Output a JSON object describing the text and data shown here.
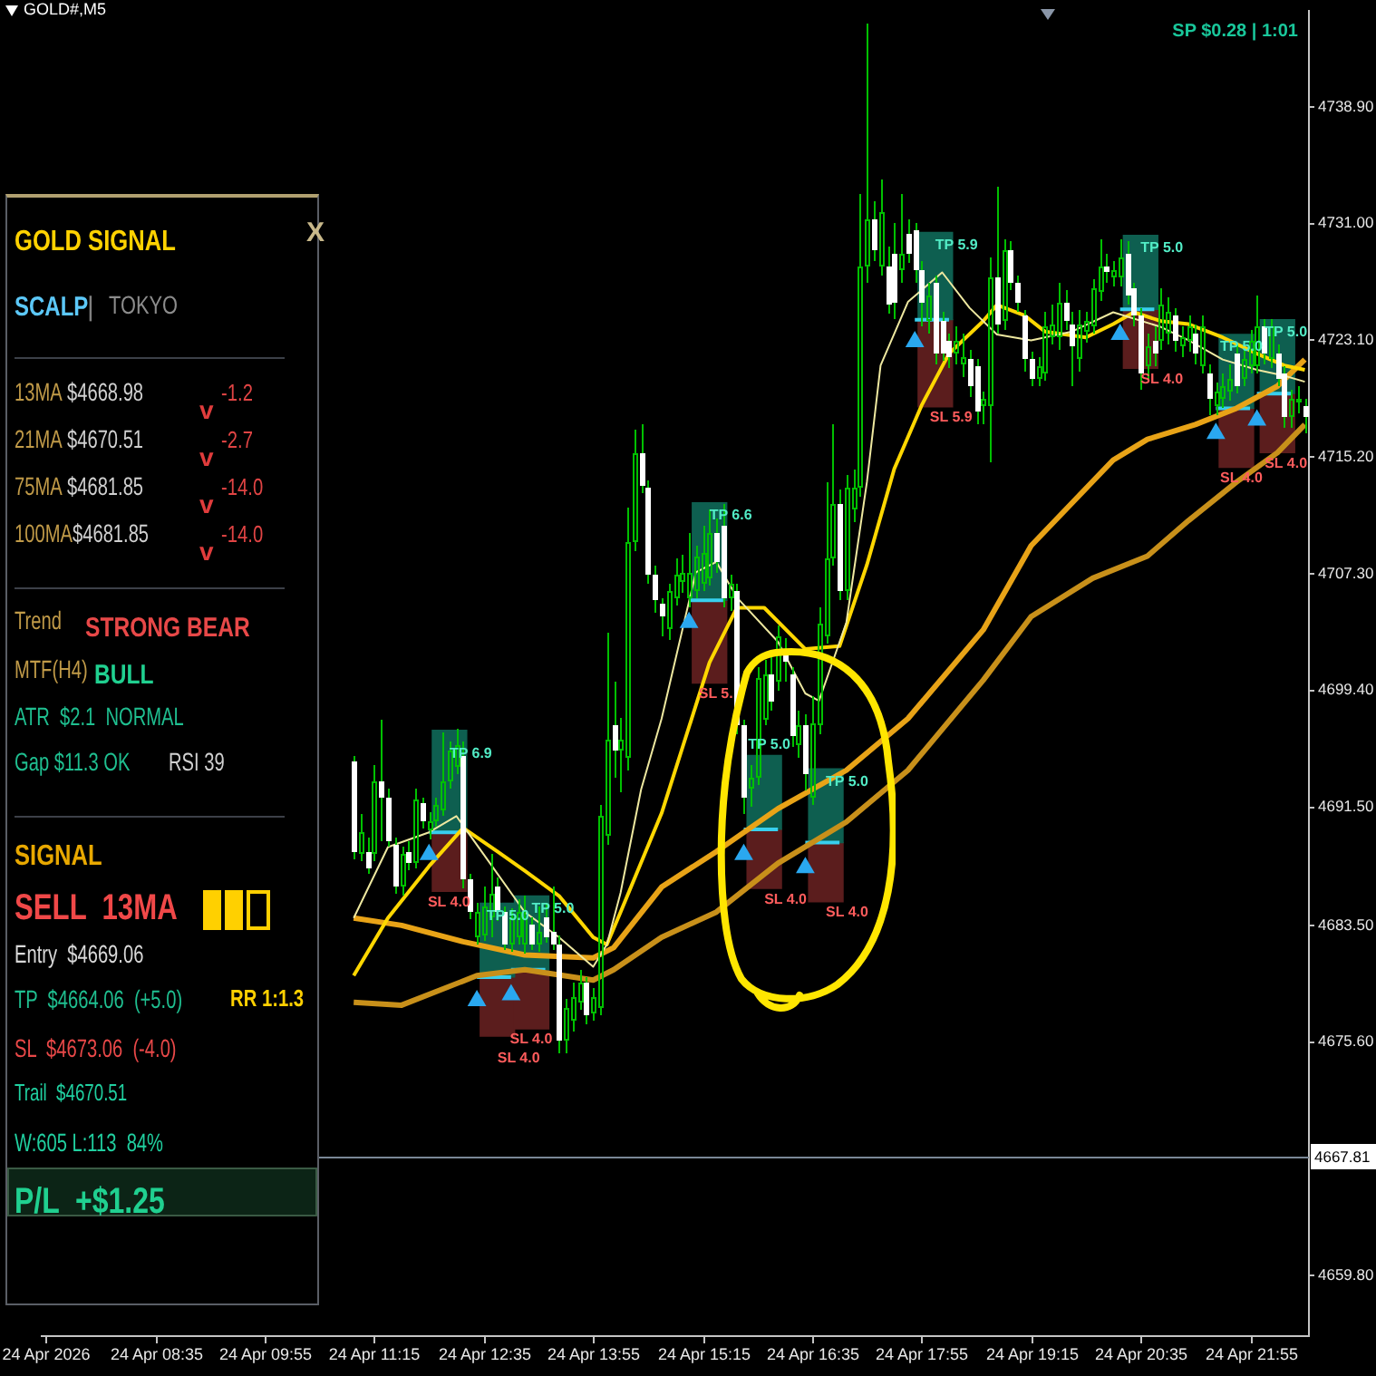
{
  "chart_data": [
    {
      "type": "candlestick",
      "title": "GOLD#,M5",
      "annotations": [
        "SP $0.28 | 1:01"
      ],
      "x": [
        "2026-04-24T11:00",
        "2026-04-24T11:05",
        "2026-04-24T11:10",
        "2026-04-24T11:15",
        "2026-04-24T11:20",
        "2026-04-24T11:25",
        "2026-04-24T11:30",
        "2026-04-24T11:35",
        "2026-04-24T11:40",
        "2026-04-24T11:45",
        "2026-04-24T11:50",
        "2026-04-24T11:55",
        "2026-04-24T12:00",
        "2026-04-24T12:05",
        "2026-04-24T12:10",
        "2026-04-24T12:15",
        "2026-04-24T12:20",
        "2026-04-24T12:25",
        "2026-04-24T12:30",
        "2026-04-24T12:35",
        "2026-04-24T12:40",
        "2026-04-24T12:45",
        "2026-04-24T12:50",
        "2026-04-24T12:55",
        "2026-04-24T13:00",
        "2026-04-24T13:05",
        "2026-04-24T13:10",
        "2026-04-24T13:15",
        "2026-04-24T13:20",
        "2026-04-24T13:25",
        "2026-04-24T13:30",
        "2026-04-24T13:35",
        "2026-04-24T13:40",
        "2026-04-24T13:45",
        "2026-04-24T13:50",
        "2026-04-24T13:55",
        "2026-04-24T14:00",
        "2026-04-24T14:05",
        "2026-04-24T14:10",
        "2026-04-24T14:15",
        "2026-04-24T14:20",
        "2026-04-24T14:25",
        "2026-04-24T14:30",
        "2026-04-24T14:35",
        "2026-04-24T14:40",
        "2026-04-24T14:45",
        "2026-04-24T14:50",
        "2026-04-24T14:55",
        "2026-04-24T15:00",
        "2026-04-24T15:05",
        "2026-04-24T15:10",
        "2026-04-24T15:15",
        "2026-04-24T15:20",
        "2026-04-24T15:25",
        "2026-04-24T15:30",
        "2026-04-24T15:35",
        "2026-04-24T15:40",
        "2026-04-24T15:45",
        "2026-04-24T15:50",
        "2026-04-24T15:55",
        "2026-04-24T16:00",
        "2026-04-24T16:05",
        "2026-04-24T16:10",
        "2026-04-24T16:15",
        "2026-04-24T16:20",
        "2026-04-24T16:25",
        "2026-04-24T16:30",
        "2026-04-24T16:35",
        "2026-04-24T16:40",
        "2026-04-24T16:45",
        "2026-04-24T16:50",
        "2026-04-24T16:55",
        "2026-04-24T17:00",
        "2026-04-24T17:05",
        "2026-04-24T17:10",
        "2026-04-24T17:15",
        "2026-04-24T17:20",
        "2026-04-24T17:25",
        "2026-04-24T17:30",
        "2026-04-24T17:35",
        "2026-04-24T17:40",
        "2026-04-24T17:45",
        "2026-04-24T17:50",
        "2026-04-24T17:55",
        "2026-04-24T18:00",
        "2026-04-24T18:05",
        "2026-04-24T18:10",
        "2026-04-24T18:15",
        "2026-04-24T18:20",
        "2026-04-24T18:25",
        "2026-04-24T18:30",
        "2026-04-24T18:35",
        "2026-04-24T18:40",
        "2026-04-24T18:45",
        "2026-04-24T18:50",
        "2026-04-24T18:55",
        "2026-04-24T19:00",
        "2026-04-24T19:05",
        "2026-04-24T19:10",
        "2026-04-24T19:15",
        "2026-04-24T19:20",
        "2026-04-24T19:25",
        "2026-04-24T19:30",
        "2026-04-24T19:35",
        "2026-04-24T19:40",
        "2026-04-24T19:45",
        "2026-04-24T19:50",
        "2026-04-24T19:55",
        "2026-04-24T20:00",
        "2026-04-24T20:05",
        "2026-04-24T20:10",
        "2026-04-24T20:15",
        "2026-04-24T20:20",
        "2026-04-24T20:25",
        "2026-04-24T20:30",
        "2026-04-24T20:35",
        "2026-04-24T20:40",
        "2026-04-24T20:45",
        "2026-04-24T20:50",
        "2026-04-24T20:55",
        "2026-04-24T21:00",
        "2026-04-24T21:05",
        "2026-04-24T21:10",
        "2026-04-24T21:15",
        "2026-04-24T21:20",
        "2026-04-24T21:25",
        "2026-04-24T21:30",
        "2026-04-24T21:35",
        "2026-04-24T21:40",
        "2026-04-24T21:45",
        "2026-04-24T21:50",
        "2026-04-24T21:55",
        "2026-04-24T22:00",
        "2026-04-24T22:05",
        "2026-04-24T22:10",
        "2026-04-24T22:15",
        "2026-04-24T22:20",
        "2026-04-24T22:25",
        "2026-04-24T22:30",
        "2026-04-24T22:35"
      ],
      "series": [
        {
          "type": "candlestick",
          "color": "#00c000",
          "colors": [
            "#ffffff",
            "#00c000",
            "#ffffff",
            "#00c000",
            "#ffffff",
            "#ffffff",
            "#ffffff",
            "#00c000",
            "#ffffff",
            "#00c000",
            "#ffffff",
            "#00c000",
            "#00c000",
            "#00c000",
            "#00c000",
            "#00c000",
            "#ffffff",
            "#ffffff",
            "#00c000",
            "#00c000",
            "#00c000",
            "#ffffff",
            "#ffffff",
            "#00c000",
            "#00c000",
            "#00c000",
            "#ffffff",
            "#00c000",
            "#ffffff",
            "#ffffff",
            "#ffffff",
            "#00c000",
            "#00c000",
            "#00c000",
            "#ffffff",
            "#00c000",
            "#00c000",
            "#00c000",
            "#ffffff",
            "#00c000",
            "#00c000",
            "#00c000",
            "#ffffff",
            "#ffffff",
            "#ffffff",
            "#ffffff",
            "#00c000",
            "#00c000",
            "#00c000",
            "#00c000",
            "#00c000",
            "#00c000",
            "#00c000",
            "#ffffff",
            "#ffffff",
            "#00c000",
            "#ffffff",
            "#ffffff",
            "#00c000",
            "#00c000",
            "#00c000",
            "#ffffff",
            "#00c000",
            "#ffffff",
            "#ffffff",
            "#00c000",
            "#ffffff",
            "#00c000",
            "#00c000",
            "#00c000",
            "#00c000",
            "#ffffff",
            "#00c000",
            "#00c000",
            "#00c000",
            "#00c000",
            "#ffffff",
            "#00c000",
            "#ffffff",
            "#ffffff",
            "#00c000",
            "#ffffff",
            "#ffffff",
            "#ffffff",
            "#00c000",
            "#ffffff",
            "#ffffff",
            "#ffffff",
            "#00c000",
            "#00c000",
            "#ffffff",
            "#ffffff",
            "#00c000",
            "#00c000",
            "#ffffff",
            "#00c000",
            "#ffffff",
            "#ffffff",
            "#ffffff",
            "#ffffff",
            "#00c000",
            "#00c000",
            "#00c000",
            "#00c000",
            "#ffffff",
            "#ffffff",
            "#00c000",
            "#00c000",
            "#00c000",
            "#00c000",
            "#ffffff",
            "#00c000",
            "#00c000",
            "#ffffff",
            "#ffffff",
            "#ffffff",
            "#00c000",
            "#ffffff",
            "#00c000",
            "#00c000",
            "#ffffff",
            "#00c000",
            "#00c000",
            "#ffffff",
            "#00c000",
            "#ffffff",
            "#00c000",
            "#00c000",
            "#00c000",
            "#ffffff",
            "#00c000",
            "#00c000",
            "#00c000",
            "#ffffff",
            "#00c000",
            "#ffffff",
            "#ffffff",
            "#00c000",
            "#00c000",
            "#ffffff"
          ],
          "ohlc": [
            [
              4694.6,
              4695.0,
              4688.0,
              4688.5
            ],
            [
              4688.3,
              4691.0,
              4687.8,
              4689.8
            ],
            [
              4688.5,
              4689.5,
              4687.0,
              4687.4
            ],
            [
              4688.3,
              4694.4,
              4687.8,
              4693.3
            ],
            [
              4693.3,
              4697.4,
              4689.2,
              4692.2
            ],
            [
              4692.2,
              4692.8,
              4688.8,
              4689.2
            ],
            [
              4689.0,
              4689.5,
              4685.6,
              4686.1
            ],
            [
              4686.1,
              4688.8,
              4685.5,
              4688.3
            ],
            [
              4688.5,
              4689.2,
              4687.2,
              4687.7
            ],
            [
              4687.7,
              4692.8,
              4687.3,
              4692.0
            ],
            [
              4691.8,
              4692.2,
              4690.0,
              4690.5
            ],
            [
              4689.9,
              4691.2,
              4689.3,
              4690.6
            ],
            [
              4690.5,
              4692.2,
              4690.2,
              4691.6
            ],
            [
              4691.3,
              4696.6,
              4690.9,
              4693.3
            ],
            [
              4693.3,
              4696.0,
              4692.8,
              4695.3
            ],
            [
              4694.2,
              4696.8,
              4693.8,
              4695.7
            ],
            [
              4695.0,
              4695.9,
              4686.0,
              4686.6
            ],
            [
              4686.6,
              4687.0,
              4683.9,
              4684.4
            ],
            [
              4682.7,
              4685.0,
              4682.2,
              4684.4
            ],
            [
              4682.8,
              4686.1,
              4682.4,
              4684.8
            ],
            [
              4684.0,
              4688.3,
              4682.7,
              4685.7
            ],
            [
              4686.1,
              4686.8,
              4683.8,
              4684.4
            ],
            [
              4684.4,
              4684.8,
              4681.8,
              4682.2
            ],
            [
              4682.2,
              4684.6,
              4681.7,
              4684.0
            ],
            [
              4682.7,
              4685.3,
              4682.2,
              4684.4
            ],
            [
              4682.2,
              4685.5,
              4681.6,
              4684.0
            ],
            [
              4683.5,
              4684.0,
              4681.8,
              4682.2
            ],
            [
              4682.2,
              4684.8,
              4681.7,
              4683.1
            ],
            [
              4684.0,
              4685.0,
              4682.3,
              4682.7
            ],
            [
              4683.1,
              4686.1,
              4681.8,
              4682.2
            ],
            [
              4682.2,
              4682.8,
              4674.9,
              4675.7
            ],
            [
              4675.7,
              4678.5,
              4674.8,
              4677.9
            ],
            [
              4677.0,
              4679.6,
              4676.3,
              4678.7
            ],
            [
              4678.3,
              4680.5,
              4677.8,
              4679.6
            ],
            [
              4679.6,
              4680.0,
              4676.8,
              4677.4
            ],
            [
              4677.6,
              4679.2,
              4677.0,
              4678.7
            ],
            [
              4677.9,
              4691.6,
              4677.4,
              4690.9
            ],
            [
              4689.6,
              4703.3,
              4689.0,
              4696.1
            ],
            [
              4697.0,
              4700.0,
              4693.5,
              4695.3
            ],
            [
              4695.3,
              4697.5,
              4692.5,
              4696.1
            ],
            [
              4694.8,
              4711.8,
              4694.0,
              4709.4
            ],
            [
              4709.4,
              4717.0,
              4708.8,
              4715.5
            ],
            [
              4715.5,
              4717.4,
              4712.8,
              4713.3
            ],
            [
              4713.1,
              4713.6,
              4706.6,
              4707.2
            ],
            [
              4707.2,
              4707.8,
              4704.6,
              4705.5
            ],
            [
              4705.3,
              4705.7,
              4703.1,
              4704.4
            ],
            [
              4703.5,
              4706.6,
              4702.8,
              4706.1
            ],
            [
              4705.7,
              4708.3,
              4705.2,
              4707.2
            ],
            [
              4706.8,
              4708.6,
              4706.0,
              4707.4
            ],
            [
              4705.7,
              4710.0,
              4705.0,
              4707.4
            ],
            [
              4706.1,
              4709.2,
              4705.6,
              4708.5
            ],
            [
              4706.6,
              4710.5,
              4706.1,
              4708.7
            ],
            [
              4707.0,
              4711.6,
              4706.5,
              4710.0
            ],
            [
              4710.0,
              4711.0,
              4707.4,
              4708.1
            ],
            [
              4710.5,
              4712.0,
              4705.0,
              4705.7
            ],
            [
              4705.7,
              4707.2,
              4704.8,
              4706.6
            ],
            [
              4706.1,
              4706.6,
              4696.5,
              4697.0
            ],
            [
              4697.0,
              4697.4,
              4691.0,
              4692.2
            ],
            [
              4692.7,
              4694.4,
              4691.5,
              4693.5
            ],
            [
              4693.5,
              4701.0,
              4693.0,
              4700.3
            ],
            [
              4697.4,
              4701.5,
              4697.0,
              4700.5
            ],
            [
              4700.5,
              4701.8,
              4698.0,
              4698.7
            ],
            [
              4700.0,
              4703.8,
              4699.4,
              4703.1
            ],
            [
              4702.2,
              4703.0,
              4700.0,
              4701.3
            ],
            [
              4700.5,
              4701.0,
              4695.6,
              4696.3
            ],
            [
              4695.7,
              4698.0,
              4694.8,
              4697.0
            ],
            [
              4697.0,
              4697.8,
              4692.6,
              4693.7
            ],
            [
              4692.2,
              4699.0,
              4691.6,
              4697.2
            ],
            [
              4697.0,
              4705.0,
              4696.5,
              4703.9
            ],
            [
              4703.1,
              4713.5,
              4702.6,
              4708.3
            ],
            [
              4708.3,
              4717.4,
              4707.8,
              4712.0
            ],
            [
              4712.0,
              4713.0,
              4705.5,
              4706.1
            ],
            [
              4706.1,
              4714.0,
              4705.5,
              4713.1
            ],
            [
              4711.6,
              4714.4,
              4710.8,
              4713.1
            ],
            [
              4713.1,
              4733.0,
              4712.5,
              4728.1
            ],
            [
              4728.1,
              4744.5,
              4727.0,
              4731.3
            ],
            [
              4731.3,
              4732.5,
              4728.5,
              4729.2
            ],
            [
              4728.1,
              4734.0,
              4727.5,
              4731.8
            ],
            [
              4728.1,
              4729.5,
              4724.9,
              4725.5
            ],
            [
              4729.0,
              4731.0,
              4724.5,
              4725.7
            ],
            [
              4727.9,
              4733.0,
              4727.0,
              4729.0
            ],
            [
              4730.3,
              4731.3,
              4728.4,
              4729.0
            ],
            [
              4730.5,
              4731.0,
              4727.0,
              4727.9
            ],
            [
              4727.9,
              4728.5,
              4724.0,
              4725.7
            ],
            [
              4724.4,
              4727.0,
              4723.5,
              4726.1
            ],
            [
              4727.0,
              4727.5,
              4721.5,
              4722.2
            ],
            [
              4724.4,
              4725.0,
              4721.7,
              4722.2
            ],
            [
              4723.1,
              4723.6,
              4721.2,
              4722.0
            ],
            [
              4722.2,
              4724.0,
              4721.5,
              4723.1
            ],
            [
              4721.5,
              4723.5,
              4720.6,
              4722.0
            ],
            [
              4721.8,
              4722.5,
              4719.3,
              4720.0
            ],
            [
              4721.4,
              4721.8,
              4717.4,
              4718.3
            ],
            [
              4718.7,
              4719.6,
              4717.4,
              4719.1
            ],
            [
              4718.7,
              4728.7,
              4714.8,
              4727.4
            ],
            [
              4727.4,
              4733.5,
              4723.5,
              4724.2
            ],
            [
              4724.4,
              4730.0,
              4723.8,
              4729.2
            ],
            [
              4729.2,
              4729.8,
              4726.5,
              4727.0
            ],
            [
              4727.0,
              4727.5,
              4725.0,
              4725.7
            ],
            [
              4724.8,
              4725.2,
              4721.0,
              4721.8
            ],
            [
              4721.8,
              4722.3,
              4720.0,
              4720.5
            ],
            [
              4720.5,
              4722.0,
              4720.0,
              4721.4
            ],
            [
              4720.9,
              4725.0,
              4720.4,
              4724.0
            ],
            [
              4723.3,
              4725.5,
              4722.8,
              4724.2
            ],
            [
              4723.3,
              4727.0,
              4722.5,
              4725.7
            ],
            [
              4725.7,
              4726.5,
              4723.8,
              4724.4
            ],
            [
              4724.2,
              4725.0,
              4720.0,
              4722.7
            ],
            [
              4721.8,
              4725.2,
              4721.0,
              4724.2
            ],
            [
              4723.7,
              4725.0,
              4723.0,
              4724.4
            ],
            [
              4724.0,
              4727.2,
              4723.5,
              4726.6
            ],
            [
              4726.4,
              4730.0,
              4725.8,
              4728.1
            ],
            [
              4728.1,
              4729.0,
              4727.0,
              4727.7
            ],
            [
              4727.4,
              4728.5,
              4726.8,
              4727.9
            ],
            [
              4727.4,
              4730.0,
              4726.8,
              4728.7
            ],
            [
              4729.0,
              4729.8,
              4725.5,
              4726.1
            ],
            [
              4726.6,
              4727.0,
              4724.0,
              4724.8
            ],
            [
              4724.8,
              4725.3,
              4719.8,
              4720.9
            ],
            [
              4721.4,
              4723.5,
              4720.5,
              4722.7
            ],
            [
              4723.1,
              4724.0,
              4721.4,
              4722.2
            ],
            [
              4723.1,
              4726.6,
              4722.5,
              4725.5
            ],
            [
              4723.5,
              4726.0,
              4722.8,
              4725.0
            ],
            [
              4724.8,
              4725.3,
              4722.3,
              4723.1
            ],
            [
              4722.7,
              4724.0,
              4722.0,
              4723.3
            ],
            [
              4723.1,
              4724.8,
              4722.3,
              4724.0
            ],
            [
              4723.5,
              4724.2,
              4721.5,
              4722.2
            ],
            [
              4721.4,
              4724.8,
              4720.8,
              4724.0
            ],
            [
              4720.9,
              4721.5,
              4718.0,
              4719.2
            ],
            [
              4718.7,
              4720.2,
              4718.0,
              4719.6
            ],
            [
              4719.2,
              4720.8,
              4718.5,
              4720.0
            ],
            [
              4719.6,
              4721.5,
              4719.0,
              4720.5
            ],
            [
              4722.2,
              4722.8,
              4719.5,
              4720.0
            ],
            [
              4720.5,
              4722.5,
              4720.0,
              4721.8
            ],
            [
              4721.4,
              4723.8,
              4720.8,
              4723.1
            ],
            [
              4721.4,
              4726.1,
              4720.9,
              4724.0
            ],
            [
              4724.0,
              4724.6,
              4721.5,
              4722.2
            ],
            [
              4721.8,
              4724.5,
              4721.2,
              4724.0
            ],
            [
              4722.2,
              4722.8,
              4720.0,
              4720.5
            ],
            [
              4720.9,
              4721.4,
              4717.2,
              4717.9
            ],
            [
              4717.9,
              4719.8,
              4717.2,
              4719.2
            ],
            [
              4718.9,
              4720.0,
              4718.2,
              4719.2
            ],
            [
              4718.7,
              4719.2,
              4716.8,
              4717.9
            ]
          ]
        },
        {
          "type": "line",
          "color": "#eee8a0",
          "x": [
            "2026-04-24T11:00",
            "2026-04-24T11:25",
            "2026-04-24T11:55",
            "2026-04-24T12:15",
            "2026-04-24T12:35",
            "2026-04-24T13:05",
            "2026-04-24T13:30",
            "2026-04-24T13:55",
            "2026-04-24T14:05",
            "2026-04-24T14:15",
            "2026-04-24T14:30",
            "2026-04-24T14:45",
            "2026-04-24T15:10",
            "2026-04-24T15:25",
            "2026-04-24T15:40",
            "2026-04-24T16:10",
            "2026-04-24T16:30",
            "2026-04-24T16:40",
            "2026-04-24T17:00",
            "2026-04-24T17:15",
            "2026-04-24T17:25",
            "2026-04-24T17:45",
            "2026-04-24T18:10",
            "2026-04-24T18:30",
            "2026-04-24T18:50",
            "2026-04-24T19:15",
            "2026-04-24T19:45",
            "2026-04-24T20:15",
            "2026-04-24T20:50",
            "2026-04-24T21:10",
            "2026-04-24T21:35",
            "2026-04-24T22:00",
            "2026-04-24T22:20",
            "2026-04-24T22:35"
          ],
          "values": [
            4684.0,
            4688.8,
            4689.8,
            4690.9,
            4688.3,
            4684.4,
            4682.7,
            4680.7,
            4682.2,
            4685.7,
            4692.7,
            4697.5,
            4707.4,
            4708.1,
            4705.7,
            4702.7,
            4699.2,
            4698.7,
            4704.0,
            4713.5,
            4721.4,
            4725.7,
            4727.7,
            4725.3,
            4723.5,
            4723.1,
            4723.7,
            4725.0,
            4724.0,
            4723.1,
            4721.8,
            4721.1,
            4720.7,
            4720.3
          ]
        },
        {
          "type": "line",
          "color": "#ffd700",
          "x": [
            "2026-04-24T11:00",
            "2026-04-24T11:25",
            "2026-04-24T11:55",
            "2026-04-24T12:20",
            "2026-04-24T12:45",
            "2026-04-24T13:05",
            "2026-04-24T13:30",
            "2026-04-24T13:55",
            "2026-04-24T14:05",
            "2026-04-24T14:15",
            "2026-04-24T14:45",
            "2026-04-24T15:20",
            "2026-04-24T15:40",
            "2026-04-24T16:00",
            "2026-04-24T16:30",
            "2026-04-24T16:55",
            "2026-04-24T17:15",
            "2026-04-24T17:35",
            "2026-04-24T17:55",
            "2026-04-24T18:15",
            "2026-04-24T18:40",
            "2026-04-24T18:50",
            "2026-04-24T19:10",
            "2026-04-24T19:25",
            "2026-04-24T19:55",
            "2026-04-24T20:15",
            "2026-04-24T20:30",
            "2026-04-24T20:50",
            "2026-04-24T21:10",
            "2026-04-24T21:35",
            "2026-04-24T22:00",
            "2026-04-24T22:20",
            "2026-04-24T22:35"
          ],
          "values": [
            4680.1,
            4684.0,
            4687.5,
            4690.1,
            4688.5,
            4687.2,
            4685.5,
            4682.7,
            4682.2,
            4684.4,
            4691.1,
            4701.3,
            4705.0,
            4705.0,
            4702.2,
            4702.4,
            4707.9,
            4714.4,
            4718.7,
            4722.2,
            4724.4,
            4725.5,
            4724.8,
            4723.7,
            4723.3,
            4724.2,
            4725.0,
            4724.4,
            4724.2,
            4723.3,
            4722.2,
            4721.4,
            4721.1
          ]
        },
        {
          "type": "line",
          "color": "#e8a317",
          "x": [
            "2026-04-24T11:00",
            "2026-04-24T11:35",
            "2026-04-24T12:20",
            "2026-04-24T13:05",
            "2026-04-24T13:55",
            "2026-04-24T14:10",
            "2026-04-24T14:45",
            "2026-04-24T15:25",
            "2026-04-24T16:10",
            "2026-04-24T17:00",
            "2026-04-24T17:45",
            "2026-04-24T18:40",
            "2026-04-24T19:15",
            "2026-04-24T20:15",
            "2026-04-24T20:40",
            "2026-04-24T21:15",
            "2026-04-24T21:45",
            "2026-04-24T22:15",
            "2026-04-24T22:35"
          ],
          "values": [
            4684.0,
            4683.5,
            4682.4,
            4681.5,
            4681.3,
            4682.0,
            4686.1,
            4688.5,
            4691.4,
            4694.0,
            4697.5,
            4703.5,
            4709.2,
            4715.0,
            4716.4,
            4717.4,
            4718.5,
            4720.0,
            4721.8
          ]
        },
        {
          "type": "line",
          "color": "#c8901a",
          "x": [
            "2026-04-24T11:00",
            "2026-04-24T11:35",
            "2026-04-24T12:30",
            "2026-04-24T13:05",
            "2026-04-24T13:55",
            "2026-04-24T14:10",
            "2026-04-24T14:45",
            "2026-04-24T15:25",
            "2026-04-24T16:10",
            "2026-04-24T17:00",
            "2026-04-24T17:45",
            "2026-04-24T18:40",
            "2026-04-24T19:15",
            "2026-04-24T20:00",
            "2026-04-24T20:40",
            "2026-04-24T21:10",
            "2026-04-24T21:45",
            "2026-04-24T22:15",
            "2026-04-24T22:35"
          ],
          "values": [
            4678.3,
            4678.1,
            4680.1,
            4680.5,
            4679.8,
            4680.5,
            4682.7,
            4684.4,
            4687.7,
            4690.5,
            4694.0,
            4700.1,
            4704.4,
            4707.0,
            4708.5,
            4710.9,
            4713.5,
            4715.5,
            4717.4
          ]
        },
        {
          "type": "bar",
          "color": "#0e5f50",
          "x": [
            "2026-04-24T12:10",
            "2026-04-24T12:45",
            "2026-04-24T13:10",
            "2026-04-24T15:20",
            "2026-04-24T16:00",
            "2026-04-24T16:45",
            "2026-04-24T18:05",
            "2026-04-24T20:35",
            "2026-04-24T21:45",
            "2026-04-24T22:15"
          ],
          "base": [
            4689.8,
            4680.0,
            4680.5,
            4705.5,
            4690.0,
            4689.1,
            4724.5,
            4725.2,
            4718.5,
            4719.5
          ],
          "values": [
            6.9,
            5.0,
            5.0,
            6.6,
            5.0,
            5.0,
            5.9,
            5.0,
            5.0,
            5.0
          ],
          "value_labels": [
            "TP 6.9",
            "TP 5.0",
            "TP 5.0",
            "TP 6.6",
            "TP 5.0",
            "TP 5.0",
            "TP 5.9",
            "TP 5.0",
            "TP 5.0",
            "TP 5.0"
          ]
        },
        {
          "type": "bar",
          "color": "#5b1d1d",
          "x": [
            "2026-04-24T12:10",
            "2026-04-24T12:45",
            "2026-04-24T13:10",
            "2026-04-24T15:20",
            "2026-04-24T16:00",
            "2026-04-24T16:45",
            "2026-04-24T18:05",
            "2026-04-24T20:35",
            "2026-04-24T21:45",
            "2026-04-24T22:15"
          ],
          "base": [
            4689.8,
            4680.0,
            4680.5,
            4705.5,
            4690.0,
            4689.1,
            4724.5,
            4725.2,
            4718.5,
            4719.5
          ],
          "values": [
            -4.0,
            -4.0,
            -4.0,
            -5.6,
            -4.0,
            -4.0,
            -5.9,
            -4.0,
            -4.0,
            -4.0
          ],
          "value_labels": [
            "SL 4.0",
            "SL 4.0",
            "SL 4.0",
            "SL 5.",
            "SL 4.0",
            "SL 4.0",
            "SL 5.9",
            "SL 4.0",
            "SL 4.0",
            "SL 4.0"
          ]
        },
        {
          "type": "line",
          "color": "#38cfee",
          "x": [
            "2026-04-24T11:55",
            "2026-04-24T12:20"
          ],
          "values": [
            4689.8,
            4689.8
          ]
        },
        {
          "type": "line",
          "color": "#38cfee",
          "x": [
            "2026-04-24T12:30",
            "2026-04-24T12:55"
          ],
          "values": [
            4680.0,
            4680.0
          ]
        },
        {
          "type": "line",
          "color": "#38cfee",
          "x": [
            "2026-04-24T12:55",
            "2026-04-24T13:20"
          ],
          "values": [
            4680.5,
            4680.5
          ]
        },
        {
          "type": "line",
          "color": "#38cfee",
          "x": [
            "2026-04-24T15:05",
            "2026-04-24T15:30"
          ],
          "values": [
            4705.5,
            4705.5
          ]
        },
        {
          "type": "line",
          "color": "#38cfee",
          "x": [
            "2026-04-24T15:45",
            "2026-04-24T16:10"
          ],
          "values": [
            4690.0,
            4690.0
          ]
        },
        {
          "type": "line",
          "color": "#38cfee",
          "x": [
            "2026-04-24T16:30",
            "2026-04-24T16:55"
          ],
          "values": [
            4689.1,
            4689.1
          ]
        },
        {
          "type": "line",
          "color": "#38cfee",
          "x": [
            "2026-04-24T17:50",
            "2026-04-24T18:15"
          ],
          "values": [
            4724.5,
            4724.5
          ]
        },
        {
          "type": "line",
          "color": "#38cfee",
          "x": [
            "2026-04-24T20:20",
            "2026-04-24T20:45"
          ],
          "values": [
            4725.2,
            4725.2
          ]
        },
        {
          "type": "line",
          "color": "#38cfee",
          "x": [
            "2026-04-24T21:30",
            "2026-04-24T21:55"
          ],
          "values": [
            4718.5,
            4718.5
          ]
        },
        {
          "type": "line",
          "color": "#38cfee",
          "x": [
            "2026-04-24T22:00",
            "2026-04-24T22:25"
          ],
          "values": [
            4719.5,
            4719.5
          ]
        },
        {
          "type": "scatter",
          "color": "#2aa8f0",
          "marker": "triangle",
          "x": [
            "2026-04-24T11:55",
            "2026-04-24T12:30",
            "2026-04-24T12:55",
            "2026-04-24T15:05",
            "2026-04-24T15:45",
            "2026-04-24T16:30",
            "2026-04-24T17:50",
            "2026-04-24T20:20",
            "2026-04-24T21:30",
            "2026-04-24T22:00"
          ],
          "values": [
            4688.3,
            4678.4,
            4678.8,
            4704.0,
            4688.3,
            4687.4,
            4723.0,
            4723.5,
            4716.8,
            4717.7
          ]
        }
      ],
      "xlim": [
        "2026-04-24T07:12",
        "2026-04-24T22:38"
      ],
      "xticks": [
        {
          "value": "2026-04-24T07:15",
          "label": "24 Apr 2026"
        },
        {
          "value": "2026-04-24T08:35",
          "label": "24 Apr 08:35"
        },
        {
          "value": "2026-04-24T09:55",
          "label": "24 Apr 09:55"
        },
        {
          "value": "2026-04-24T11:15",
          "label": "24 Apr 11:15"
        },
        {
          "value": "2026-04-24T12:35",
          "label": "24 Apr 12:35"
        },
        {
          "value": "2026-04-24T13:55",
          "label": "24 Apr 13:55"
        },
        {
          "value": "2026-04-24T15:15",
          "label": "24 Apr 15:15"
        },
        {
          "value": "2026-04-24T16:35",
          "label": "24 Apr 16:35"
        },
        {
          "value": "2026-04-24T17:55",
          "label": "24 Apr 17:55"
        },
        {
          "value": "2026-04-24T19:15",
          "label": "24 Apr 19:15"
        },
        {
          "value": "2026-04-24T20:35",
          "label": "24 Apr 20:35"
        },
        {
          "value": "2026-04-24T21:55",
          "label": "24 Apr 21:55"
        }
      ],
      "ylim": [
        4655.7,
        4745.4
      ],
      "yticks": [
        {
          "value": 4659.8,
          "label": "4659.80"
        },
        {
          "value": 4675.6,
          "label": "4675.60"
        },
        {
          "value": 4683.5,
          "label": "4683.50"
        },
        {
          "value": 4691.5,
          "label": "4691.50"
        },
        {
          "value": 4699.4,
          "label": "4699.40"
        },
        {
          "value": 4707.3,
          "label": "4707.30"
        },
        {
          "value": 4715.2,
          "label": "4715.20"
        },
        {
          "value": 4723.1,
          "label": "4723.10"
        },
        {
          "value": 4731.0,
          "label": "4731.00"
        },
        {
          "value": 4738.9,
          "label": "4738.90"
        }
      ],
      "ref_lines": [
        {
          "axis": "y",
          "value": 4667.81,
          "label": "4667.81",
          "color": "#7a8796"
        }
      ]
    },
    {
      "type": "other",
      "title": "GOLD SIGNAL",
      "annotations": [
        "X",
        "SCALP",
        "|",
        "TOKYO",
        "13MA",
        "$4668.98",
        "v",
        "-1.2",
        "21MA",
        "$4670.51",
        "v",
        "-2.7",
        "75MA",
        "$4681.85",
        "v",
        "-14.0",
        "100MA",
        "$4681.85",
        "v",
        "-14.0",
        "Trend",
        "STRONG BEAR",
        "MTF(H4)",
        "BULL",
        "ATR  $2.1  NORMAL",
        "Gap $11.3 OK",
        "RSI 39",
        "SIGNAL",
        "SELL  13MA",
        "Entry  $4669.06",
        "TP  $4664.06  (+5.0)",
        "RR 1:1.3",
        "SL  $4673.06  (-4.0)",
        "Trail  $4670.51",
        "W:605 L:113  84%",
        "P/L  +$1.25"
      ]
    }
  ]
}
